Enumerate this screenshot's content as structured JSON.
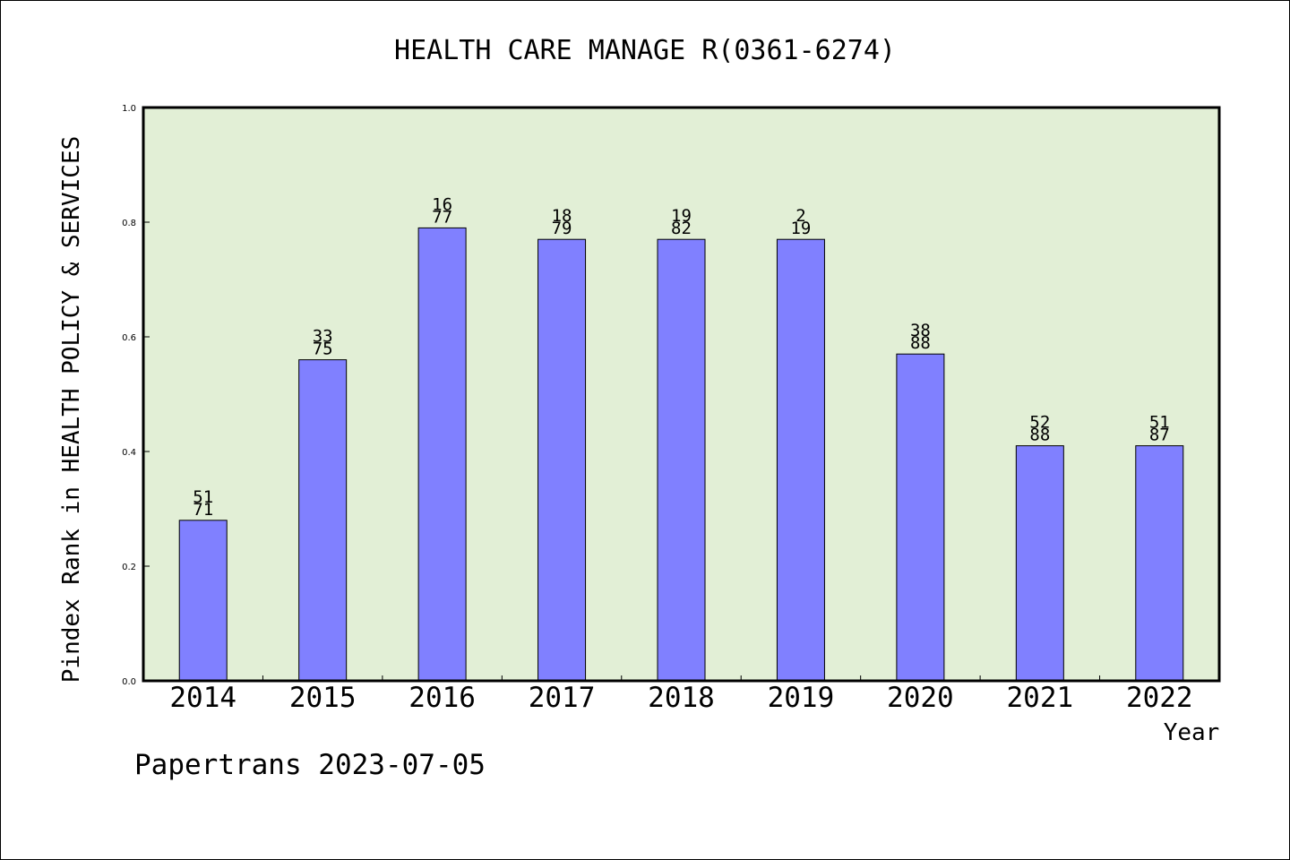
{
  "chart_data": {
    "type": "bar",
    "title": "HEALTH CARE MANAGE R(0361-6274)",
    "xlabel": "Year",
    "ylabel": "Pindex Rank in HEALTH POLICY & SERVICES",
    "ylim": [
      0,
      1.0
    ],
    "yticks": [
      "0.0",
      "0.2",
      "0.4",
      "0.6",
      "0.8",
      "1.0"
    ],
    "categories": [
      "2014",
      "2015",
      "2016",
      "2017",
      "2018",
      "2019",
      "2020",
      "2021",
      "2022"
    ],
    "values": [
      0.28,
      0.56,
      0.79,
      0.77,
      0.77,
      0.77,
      0.57,
      0.41,
      0.41
    ],
    "label_top": [
      "51",
      "33",
      "16",
      "18",
      "19",
      "2",
      "38",
      "52",
      "51"
    ],
    "label_bottom": [
      "71",
      "75",
      "77",
      "79",
      "82",
      "19",
      "88",
      "88",
      "87"
    ],
    "bar_color": "#8080ff",
    "plot_background": "#e2efd6",
    "grid": false
  },
  "footer": "Papertrans 2023-07-05"
}
